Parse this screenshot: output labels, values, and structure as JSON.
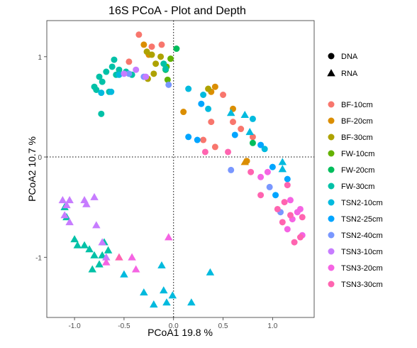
{
  "chart_data": {
    "type": "scatter",
    "title": "16S PCoA - Plot and Depth",
    "xlabel": "PCoA1  19.8 %",
    "ylabel": "PCoA2  10.7 %",
    "xlim": [
      -1.28,
      1.42
    ],
    "ylim": [
      -1.6,
      1.36
    ],
    "x_ticks": [
      -1.0,
      -0.5,
      0.0,
      0.5,
      1.0
    ],
    "x_tick_labels": [
      "-1.0",
      "-0.5",
      "0.0",
      "0.5",
      "1.0"
    ],
    "y_ticks": [
      -1,
      0,
      1
    ],
    "y_tick_labels": [
      "-1",
      "0",
      "1"
    ],
    "grid": false,
    "reference_lines": {
      "x": 0,
      "y": 0,
      "style": "dotted"
    },
    "legend_placement": "right",
    "shape_legend": [
      {
        "label": "DNA",
        "shape": "circle"
      },
      {
        "label": "RNA",
        "shape": "triangle"
      }
    ],
    "series": [
      {
        "name": "BF-10cm",
        "color": "#F8766D",
        "points": [
          {
            "x": -0.35,
            "y": 1.22,
            "shape": "circle"
          },
          {
            "x": -0.45,
            "y": 0.95,
            "shape": "circle"
          },
          {
            "x": -0.22,
            "y": 1.1,
            "shape": "circle"
          },
          {
            "x": -0.12,
            "y": 1.12,
            "shape": "circle"
          },
          {
            "x": 0.5,
            "y": 0.62,
            "shape": "circle"
          },
          {
            "x": 0.38,
            "y": 0.35,
            "shape": "circle"
          },
          {
            "x": 0.3,
            "y": 0.17,
            "shape": "circle"
          },
          {
            "x": 0.42,
            "y": 0.1,
            "shape": "circle"
          },
          {
            "x": 0.68,
            "y": 0.28,
            "shape": "circle"
          },
          {
            "x": 0.8,
            "y": 0.2,
            "shape": "circle"
          },
          {
            "x": 0.6,
            "y": 0.35,
            "shape": "circle"
          }
        ]
      },
      {
        "name": "BF-20cm",
        "color": "#DB8E00",
        "points": [
          {
            "x": -0.3,
            "y": 1.12,
            "shape": "circle"
          },
          {
            "x": -0.25,
            "y": 1.02,
            "shape": "circle"
          },
          {
            "x": 0.1,
            "y": 0.45,
            "shape": "circle"
          },
          {
            "x": 0.38,
            "y": 0.65,
            "shape": "circle"
          },
          {
            "x": 0.42,
            "y": 0.7,
            "shape": "circle"
          },
          {
            "x": 0.6,
            "y": 0.48,
            "shape": "circle"
          },
          {
            "x": 0.72,
            "y": -0.05,
            "shape": "triangle"
          },
          {
            "x": 0.74,
            "y": -0.04,
            "shape": "circle"
          }
        ]
      },
      {
        "name": "BF-30cm",
        "color": "#AEA200",
        "points": [
          {
            "x": -0.27,
            "y": 1.05,
            "shape": "circle"
          },
          {
            "x": -0.22,
            "y": 1.02,
            "shape": "circle"
          },
          {
            "x": -0.18,
            "y": 0.93,
            "shape": "circle"
          },
          {
            "x": -0.26,
            "y": 0.78,
            "shape": "circle"
          },
          {
            "x": -0.2,
            "y": 0.83,
            "shape": "circle"
          },
          {
            "x": -0.13,
            "y": 1.0,
            "shape": "circle"
          },
          {
            "x": 0.35,
            "y": 0.68,
            "shape": "circle"
          }
        ]
      },
      {
        "name": "FW-10cm",
        "color": "#64B200",
        "points": [
          {
            "x": -0.07,
            "y": 0.9,
            "shape": "circle"
          },
          {
            "x": -0.03,
            "y": 0.98,
            "shape": "circle"
          },
          {
            "x": -0.06,
            "y": 0.77,
            "shape": "circle"
          }
        ]
      },
      {
        "name": "FW-20cm",
        "color": "#00BD5C",
        "points": [
          {
            "x": 0.03,
            "y": 1.08,
            "shape": "circle"
          },
          {
            "x": -0.08,
            "y": 0.87,
            "shape": "circle"
          },
          {
            "x": 0.8,
            "y": 0.14,
            "shape": "circle"
          }
        ]
      },
      {
        "name": "FW-30cm",
        "color": "#00C1A7",
        "points": [
          {
            "x": -0.6,
            "y": 0.97,
            "shape": "circle"
          },
          {
            "x": -0.62,
            "y": 0.9,
            "shape": "circle"
          },
          {
            "x": -0.55,
            "y": 0.87,
            "shape": "circle"
          },
          {
            "x": -0.75,
            "y": 0.8,
            "shape": "circle"
          },
          {
            "x": -0.8,
            "y": 0.7,
            "shape": "circle"
          },
          {
            "x": -0.65,
            "y": 0.65,
            "shape": "circle"
          },
          {
            "x": -0.48,
            "y": 0.85,
            "shape": "circle"
          },
          {
            "x": -0.42,
            "y": 0.82,
            "shape": "circle"
          },
          {
            "x": -0.72,
            "y": 0.75,
            "shape": "circle"
          },
          {
            "x": -0.68,
            "y": 0.85,
            "shape": "circle"
          },
          {
            "x": -0.73,
            "y": 0.43,
            "shape": "circle"
          },
          {
            "x": -0.08,
            "y": 0.88,
            "shape": "circle"
          },
          {
            "x": -0.1,
            "y": 0.93,
            "shape": "circle"
          },
          {
            "x": -0.58,
            "y": 0.82,
            "shape": "circle"
          },
          {
            "x": -0.78,
            "y": 0.67,
            "shape": "circle"
          },
          {
            "x": -1.1,
            "y": -0.5,
            "shape": "triangle"
          },
          {
            "x": -1.08,
            "y": -0.6,
            "shape": "triangle"
          },
          {
            "x": -1.0,
            "y": -0.82,
            "shape": "triangle"
          },
          {
            "x": -0.97,
            "y": -0.88,
            "shape": "triangle"
          },
          {
            "x": -0.9,
            "y": -0.88,
            "shape": "triangle"
          },
          {
            "x": -0.85,
            "y": -0.92,
            "shape": "triangle"
          },
          {
            "x": -0.8,
            "y": -0.98,
            "shape": "triangle"
          },
          {
            "x": -0.72,
            "y": -0.98,
            "shape": "triangle"
          },
          {
            "x": -0.7,
            "y": -0.85,
            "shape": "triangle"
          },
          {
            "x": -0.66,
            "y": -0.93,
            "shape": "triangle"
          },
          {
            "x": -0.75,
            "y": -1.07,
            "shape": "triangle"
          },
          {
            "x": -0.82,
            "y": -1.12,
            "shape": "triangle"
          }
        ]
      },
      {
        "name": "TSN2-10cm",
        "color": "#00BADE",
        "points": [
          {
            "x": -0.55,
            "y": 0.82,
            "shape": "circle"
          },
          {
            "x": -0.73,
            "y": 0.64,
            "shape": "circle"
          },
          {
            "x": -0.63,
            "y": 0.65,
            "shape": "circle"
          },
          {
            "x": 0.15,
            "y": 0.68,
            "shape": "circle"
          },
          {
            "x": 0.3,
            "y": 0.62,
            "shape": "circle"
          },
          {
            "x": 0.35,
            "y": 0.48,
            "shape": "circle"
          },
          {
            "x": 0.8,
            "y": 0.38,
            "shape": "circle"
          },
          {
            "x": 0.92,
            "y": 0.08,
            "shape": "circle"
          },
          {
            "x": 0.58,
            "y": 0.44,
            "shape": "triangle"
          },
          {
            "x": 0.72,
            "y": 0.42,
            "shape": "triangle"
          },
          {
            "x": 0.77,
            "y": 0.25,
            "shape": "triangle"
          },
          {
            "x": 1.1,
            "y": -0.05,
            "shape": "triangle"
          },
          {
            "x": 1.1,
            "y": -0.12,
            "shape": "triangle"
          },
          {
            "x": -0.12,
            "y": -1.08,
            "shape": "triangle"
          },
          {
            "x": -0.5,
            "y": -1.17,
            "shape": "triangle"
          },
          {
            "x": -0.3,
            "y": -1.35,
            "shape": "triangle"
          },
          {
            "x": -0.2,
            "y": -1.47,
            "shape": "triangle"
          },
          {
            "x": -0.1,
            "y": -1.33,
            "shape": "triangle"
          },
          {
            "x": -0.07,
            "y": -1.45,
            "shape": "triangle"
          },
          {
            "x": -0.01,
            "y": -1.38,
            "shape": "triangle"
          },
          {
            "x": 0.18,
            "y": -1.45,
            "shape": "triangle"
          },
          {
            "x": 0.37,
            "y": -1.15,
            "shape": "triangle"
          }
        ]
      },
      {
        "name": "TSN2-25cm",
        "color": "#00A5FF",
        "points": [
          {
            "x": 0.15,
            "y": 0.2,
            "shape": "circle"
          },
          {
            "x": 0.24,
            "y": 0.17,
            "shape": "circle"
          },
          {
            "x": 0.28,
            "y": 0.53,
            "shape": "circle"
          },
          {
            "x": 0.62,
            "y": 0.22,
            "shape": "circle"
          },
          {
            "x": 0.88,
            "y": 0.12,
            "shape": "circle"
          },
          {
            "x": 1.0,
            "y": -0.1,
            "shape": "circle"
          },
          {
            "x": 1.15,
            "y": -0.22,
            "shape": "circle"
          },
          {
            "x": 1.03,
            "y": -0.38,
            "shape": "circle"
          }
        ]
      },
      {
        "name": "TSN2-40cm",
        "color": "#7997FF",
        "points": [
          {
            "x": -0.45,
            "y": 0.83,
            "shape": "circle"
          },
          {
            "x": -0.3,
            "y": 0.8,
            "shape": "circle"
          },
          {
            "x": -0.05,
            "y": 0.72,
            "shape": "circle"
          },
          {
            "x": 0.58,
            "y": -0.13,
            "shape": "circle"
          },
          {
            "x": 0.97,
            "y": -0.3,
            "shape": "circle"
          },
          {
            "x": 1.08,
            "y": -0.55,
            "shape": "circle"
          }
        ]
      },
      {
        "name": "TSN3-10cm",
        "color": "#C77CFF",
        "points": [
          {
            "x": -0.5,
            "y": 0.83,
            "shape": "circle"
          },
          {
            "x": -0.38,
            "y": 0.87,
            "shape": "circle"
          },
          {
            "x": -0.28,
            "y": 0.8,
            "shape": "circle"
          },
          {
            "x": -1.12,
            "y": -0.43,
            "shape": "triangle"
          },
          {
            "x": -1.08,
            "y": -0.48,
            "shape": "triangle"
          },
          {
            "x": -1.05,
            "y": -0.43,
            "shape": "triangle"
          },
          {
            "x": -0.9,
            "y": -0.43,
            "shape": "triangle"
          },
          {
            "x": -0.88,
            "y": -0.47,
            "shape": "triangle"
          },
          {
            "x": -0.8,
            "y": -0.4,
            "shape": "triangle"
          },
          {
            "x": -1.1,
            "y": -0.58,
            "shape": "triangle"
          },
          {
            "x": -1.05,
            "y": -0.65,
            "shape": "triangle"
          },
          {
            "x": -0.78,
            "y": -0.68,
            "shape": "triangle"
          },
          {
            "x": -0.72,
            "y": -0.85,
            "shape": "triangle"
          },
          {
            "x": -0.68,
            "y": -1.0,
            "shape": "triangle"
          }
        ]
      },
      {
        "name": "TSN3-20cm",
        "color": "#F564E3",
        "points": [
          {
            "x": 0.88,
            "y": -0.2,
            "shape": "circle"
          },
          {
            "x": 0.95,
            "y": -0.15,
            "shape": "circle"
          },
          {
            "x": 1.18,
            "y": -0.43,
            "shape": "circle"
          },
          {
            "x": 1.2,
            "y": -0.62,
            "shape": "circle"
          },
          {
            "x": 1.25,
            "y": -0.55,
            "shape": "circle"
          },
          {
            "x": 1.3,
            "y": -0.78,
            "shape": "circle"
          },
          {
            "x": 1.15,
            "y": -0.72,
            "shape": "circle"
          },
          {
            "x": 1.28,
            "y": -0.52,
            "shape": "circle"
          },
          {
            "x": -0.42,
            "y": -1.0,
            "shape": "triangle"
          },
          {
            "x": -0.05,
            "y": -0.8,
            "shape": "triangle"
          },
          {
            "x": -0.68,
            "y": -1.05,
            "shape": "triangle"
          },
          {
            "x": -0.38,
            "y": -1.12,
            "shape": "triangle"
          }
        ]
      },
      {
        "name": "TSN3-30cm",
        "color": "#FF64B0",
        "points": [
          {
            "x": 0.32,
            "y": 0.05,
            "shape": "circle"
          },
          {
            "x": 0.55,
            "y": 0.05,
            "shape": "circle"
          },
          {
            "x": 0.78,
            "y": -0.15,
            "shape": "circle"
          },
          {
            "x": 0.88,
            "y": -0.38,
            "shape": "circle"
          },
          {
            "x": 1.05,
            "y": -0.52,
            "shape": "circle"
          },
          {
            "x": 1.15,
            "y": -0.28,
            "shape": "circle"
          },
          {
            "x": 1.12,
            "y": -0.45,
            "shape": "circle"
          },
          {
            "x": 1.18,
            "y": -0.58,
            "shape": "circle"
          },
          {
            "x": 1.22,
            "y": -0.85,
            "shape": "circle"
          },
          {
            "x": 1.28,
            "y": -0.8,
            "shape": "circle"
          },
          {
            "x": 1.3,
            "y": -0.6,
            "shape": "circle"
          },
          {
            "x": 1.1,
            "y": -0.65,
            "shape": "circle"
          },
          {
            "x": -0.55,
            "y": -1.0,
            "shape": "triangle"
          }
        ]
      }
    ]
  }
}
